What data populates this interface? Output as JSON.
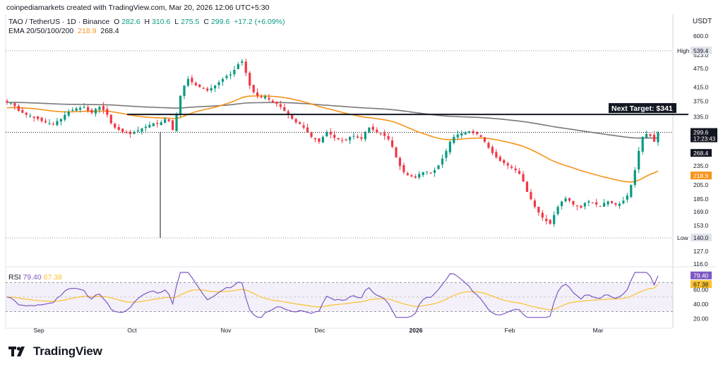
{
  "header": {
    "created_by": "coinpediamarkets created with TradingView.com, Mar 20, 2026 12:06 UTC+5:30"
  },
  "legend": {
    "symbol": "TAO / TetherUS · 1D · Binance",
    "o_label": "O",
    "o": "282.6",
    "h_label": "H",
    "h": "310.6",
    "l_label": "L",
    "l": "275.5",
    "c_label": "C",
    "c": "299.6",
    "change": "+17.2 (+6.09%)",
    "ema_label": "EMA 20/50/100/200",
    "ema_value_1": "218.9",
    "ema_value_2": "268.4"
  },
  "currency": "USDT",
  "rsi_legend": {
    "label": "RSI",
    "value": "79.40",
    "ma": "67.38"
  },
  "footer": {
    "brand": "TradingView"
  },
  "colors": {
    "up": "#089981",
    "down": "#f23645",
    "ema_orange": "#f7931a",
    "ema_gray": "#787878",
    "rsi": "#7e57c2",
    "rsi_ma": "#fbc02d",
    "rsi_band": "#7e57c2"
  },
  "chart_data": [
    {
      "type": "candlestick",
      "title": "TAO / TetherUS · 1D · Binance",
      "scale": "log",
      "x_ticks": [
        "Sep",
        "Oct",
        "Nov",
        "Dec",
        "2026",
        "Feb",
        "Mar"
      ],
      "y_ticks": [
        "600.0",
        "539.4",
        "523.0",
        "475.0",
        "415.0",
        "375.0",
        "335.0",
        "299.6",
        "268.4",
        "235.0",
        "218.9",
        "205.0",
        "185.0",
        "169.0",
        "153.0",
        "140.0",
        "127.0",
        "116.0"
      ],
      "high_label": "High",
      "high": "539.4",
      "low_label": "Low",
      "low": "140.0",
      "last_price": "299.6",
      "countdown": "17:23:43",
      "ema_200_value": "268.4",
      "ema_50_value": "218.9",
      "annotation": "Next Target: $341",
      "target_level": 341,
      "close_series": [
        372,
        370,
        362,
        350,
        345,
        340,
        338,
        333,
        330,
        325,
        322,
        320,
        318,
        325,
        330,
        340,
        348,
        352,
        356,
        358,
        360,
        350,
        345,
        355,
        360,
        352,
        340,
        320,
        310,
        305,
        300,
        298,
        296,
        300,
        304,
        308,
        312,
        316,
        320,
        318,
        322,
        330,
        325,
        305,
        340,
        390,
        420,
        440,
        430,
        420,
        415,
        410,
        405,
        412,
        420,
        430,
        440,
        450,
        455,
        470,
        490,
        500,
        460,
        420,
        400,
        390,
        385,
        388,
        380,
        372,
        368,
        360,
        350,
        340,
        330,
        322,
        318,
        310,
        300,
        290,
        285,
        280,
        290,
        300,
        295,
        288,
        285,
        282,
        284,
        290,
        292,
        288,
        286,
        300,
        310,
        305,
        300,
        296,
        292,
        285,
        270,
        250,
        235,
        225,
        220,
        218,
        216,
        222,
        225,
        226,
        224,
        228,
        236,
        248,
        262,
        280,
        290,
        295,
        298,
        300,
        302,
        298,
        296,
        290,
        280,
        268,
        258,
        250,
        244,
        240,
        236,
        232,
        228,
        222,
        210,
        195,
        185,
        175,
        168,
        162,
        158,
        155,
        165,
        175,
        182,
        186,
        183,
        178,
        176,
        174,
        180,
        182,
        180,
        178,
        176,
        180,
        182,
        180,
        178,
        179,
        183,
        190,
        205,
        228,
        262,
        290,
        296,
        292,
        280,
        300
      ]
    },
    {
      "type": "line",
      "title": "RSI",
      "y_ticks": [
        "79.40",
        "67.38",
        "60.00",
        "40.00",
        "20.00"
      ],
      "series": [
        {
          "name": "RSI",
          "last": 79.4
        },
        {
          "name": "MA",
          "last": 67.38
        }
      ],
      "band": [
        30,
        70
      ]
    }
  ]
}
